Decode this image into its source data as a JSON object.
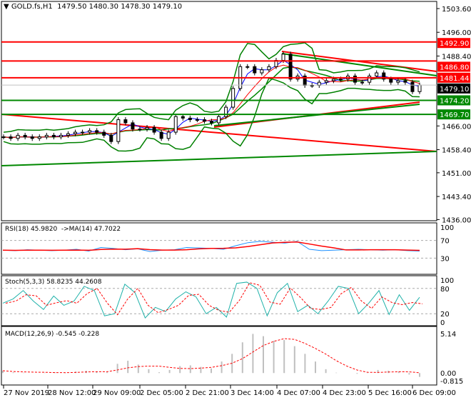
{
  "header": {
    "symbol": "GOLD.fs,H1",
    "ohlc": "1479.50 1480.30 1478.30 1479.10"
  },
  "colors": {
    "up_level": "#ff0000",
    "down_level": "#008000",
    "current": "#000000",
    "band": "#008000",
    "rsi": "#1e90ff",
    "signal": "#ff0000",
    "stoch": "#20b2aa",
    "macd_hist": "#c0c0c0"
  },
  "chart_data": [
    {
      "type": "candlestick",
      "title": "GOLD.fs,H1",
      "ylim": [
        1436.0,
        1503.6
      ],
      "y_ticks": [
        "1503.60",
        "1496.00",
        "1488.40",
        "1466.00",
        "1458.40",
        "1451.00",
        "1443.40",
        "1436.00"
      ],
      "x_ticks": [
        "27 Nov 2019",
        "28 Nov 12:00",
        "29 Nov 09:00",
        "2 Dec 05:00",
        "2 Dec 21:00",
        "3 Dec 14:00",
        "4 Dec 07:00",
        "4 Dec 23:00",
        "5 Dec 16:00",
        "6 Dec 09:00"
      ],
      "closes": [
        1462.5,
        1462,
        1463,
        1462.5,
        1462,
        1462.5,
        1463,
        1462.5,
        1463,
        1463.5,
        1464,
        1464,
        1464.5,
        1464,
        1463,
        1461,
        1468,
        1467,
        1465,
        1465,
        1465.5,
        1464,
        1462,
        1464,
        1469,
        1468.5,
        1468,
        1468,
        1467.5,
        1467,
        1469,
        1472,
        1478,
        1485,
        1485,
        1483,
        1484,
        1485,
        1487,
        1489,
        1481,
        1482,
        1479,
        1479,
        1480,
        1480.5,
        1481,
        1481,
        1482,
        1480,
        1480,
        1482,
        1483,
        1481,
        1480,
        1480.5,
        1480,
        1477,
        1479.1
      ],
      "levels": [
        {
          "value": "1492.90",
          "color": "red"
        },
        {
          "value": "1486.80",
          "color": "red"
        },
        {
          "value": "1481.44",
          "color": "red"
        },
        {
          "value": "1474.20",
          "color": "green"
        },
        {
          "value": "1469.70",
          "color": "green"
        }
      ],
      "current_price": "1479.10"
    },
    {
      "type": "line",
      "title": "RSI(18) 45.9820  ->MA(14) 47.7022",
      "ylim": [
        0,
        100
      ],
      "y_ticks": [
        "100",
        "70",
        "30"
      ],
      "levels": [
        70,
        30
      ],
      "values": [
        48,
        47,
        49,
        48,
        47,
        48,
        50,
        46,
        54,
        52,
        49,
        51,
        45,
        48,
        49,
        54,
        53,
        52,
        50,
        58,
        65,
        68,
        66,
        64,
        68,
        50,
        47,
        48,
        49,
        50,
        49,
        48,
        49,
        47,
        46
      ]
    },
    {
      "type": "line",
      "title": "Stoch(5,3,3) 58.8235 44.2608",
      "ylim": [
        0,
        100
      ],
      "y_ticks": [
        "100",
        "80",
        "20",
        "0"
      ],
      "levels": [
        80,
        20
      ],
      "values": [
        45,
        55,
        75,
        50,
        30,
        62,
        40,
        50,
        85,
        75,
        15,
        20,
        90,
        70,
        10,
        35,
        25,
        55,
        72,
        60,
        20,
        35,
        12,
        92,
        95,
        80,
        15,
        70,
        92,
        25,
        40,
        20,
        50,
        85,
        80,
        20,
        45,
        75,
        18,
        65,
        28,
        59
      ]
    },
    {
      "type": "bar",
      "title": "MACD(12,26,9) -0.545 -0.228",
      "ylim": [
        -0.815,
        5.14
      ],
      "y_ticks": [
        "5.14",
        "0.00",
        "-0.815"
      ],
      "values": [
        0.3,
        0.1,
        0.05,
        0,
        0.05,
        0.1,
        0.05,
        0.2,
        0.3,
        0.2,
        0.1,
        1.2,
        1.6,
        1.1,
        0.5,
        0.1,
        0.4,
        0.9,
        1.0,
        0.8,
        0.6,
        1.5,
        2.5,
        4.0,
        5.1,
        4.8,
        4.2,
        4.3,
        3.5,
        2.5,
        1.5,
        0.5,
        0.05,
        0,
        -0.1,
        0.05,
        0.4,
        0.3,
        0.2,
        -0.2,
        -0.5
      ]
    }
  ]
}
